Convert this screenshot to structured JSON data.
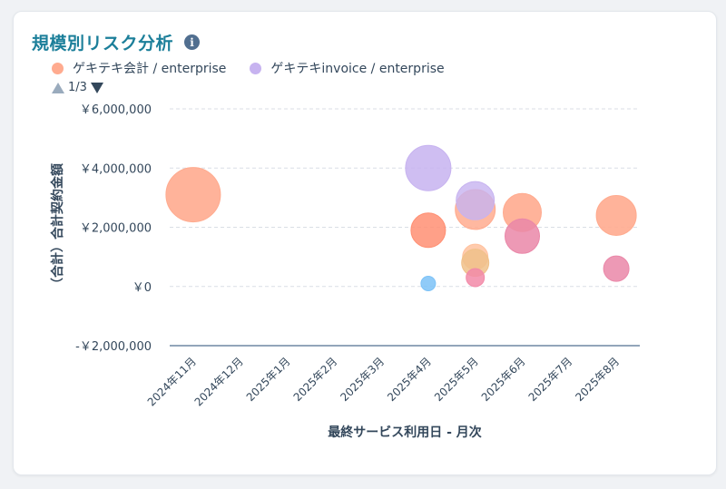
{
  "widget": {
    "title": "規模別リスク分析",
    "info_icon": "info-icon"
  },
  "pager": {
    "label": "1/3"
  },
  "colors": {
    "title": "#1c7f9a",
    "axis": "#33475b",
    "grid": "#d9dee5",
    "baseline": "#516f90"
  },
  "chart_data": {
    "type": "bubble",
    "xlabel": "最終サービス利用日 - 月次",
    "ylabel": "（合計）合計契約金額",
    "categories": [
      "2024年11月",
      "2024年12月",
      "2025年1月",
      "2025年2月",
      "2025年3月",
      "2025年4月",
      "2025年5月",
      "2025年6月",
      "2025年7月",
      "2025年8月"
    ],
    "y_ticks": [
      {
        "value": 6000000,
        "label": "￥6,000,000"
      },
      {
        "value": 4000000,
        "label": "￥4,000,000"
      },
      {
        "value": 2000000,
        "label": "￥2,000,000"
      },
      {
        "value": 0,
        "label": "￥0"
      },
      {
        "value": -2000000,
        "label": "-￥2,000,000"
      }
    ],
    "ylim": [
      -2000000,
      6000000
    ],
    "grid": true,
    "legend": [
      {
        "name": "ゲキテキ会計 / enterprise",
        "color": "#ffab8f"
      },
      {
        "name": "ゲキテキinvoice / enterprise",
        "color": "#c7b3f0"
      }
    ],
    "points": [
      {
        "x": "2024年11月",
        "y": 3100000,
        "r": 30,
        "color": "#ffab8f",
        "opacity": 0.9
      },
      {
        "x": "2025年4月",
        "y": 1900000,
        "r": 19,
        "color": "#ff8f73",
        "opacity": 0.85
      },
      {
        "x": "2025年4月",
        "y": 4000000,
        "r": 25,
        "color": "#c7b3f0",
        "opacity": 0.85
      },
      {
        "x": "2025年4月",
        "y": 100000,
        "r": 8,
        "color": "#7cc2f7",
        "opacity": 0.85
      },
      {
        "x": "2025年5月",
        "y": 2600000,
        "r": 22,
        "color": "#ffab8f",
        "opacity": 0.85
      },
      {
        "x": "2025年5月",
        "y": 2900000,
        "r": 21,
        "color": "#c7b3f0",
        "opacity": 0.8
      },
      {
        "x": "2025年5月",
        "y": 1000000,
        "r": 14,
        "color": "#ffc29f",
        "opacity": 0.85
      },
      {
        "x": "2025年5月",
        "y": 800000,
        "r": 15,
        "color": "#f0c18a",
        "opacity": 0.85
      },
      {
        "x": "2025年5月",
        "y": 300000,
        "r": 10,
        "color": "#f28aa8",
        "opacity": 0.85
      },
      {
        "x": "2025年6月",
        "y": 2500000,
        "r": 21,
        "color": "#ffab8f",
        "opacity": 0.9
      },
      {
        "x": "2025年6月",
        "y": 1700000,
        "r": 19,
        "color": "#ea87a8",
        "opacity": 0.85
      },
      {
        "x": "2025年8月",
        "y": 2400000,
        "r": 22,
        "color": "#ffab8f",
        "opacity": 0.9
      },
      {
        "x": "2025年8月",
        "y": 600000,
        "r": 14,
        "color": "#ea87a8",
        "opacity": 0.85
      }
    ]
  }
}
